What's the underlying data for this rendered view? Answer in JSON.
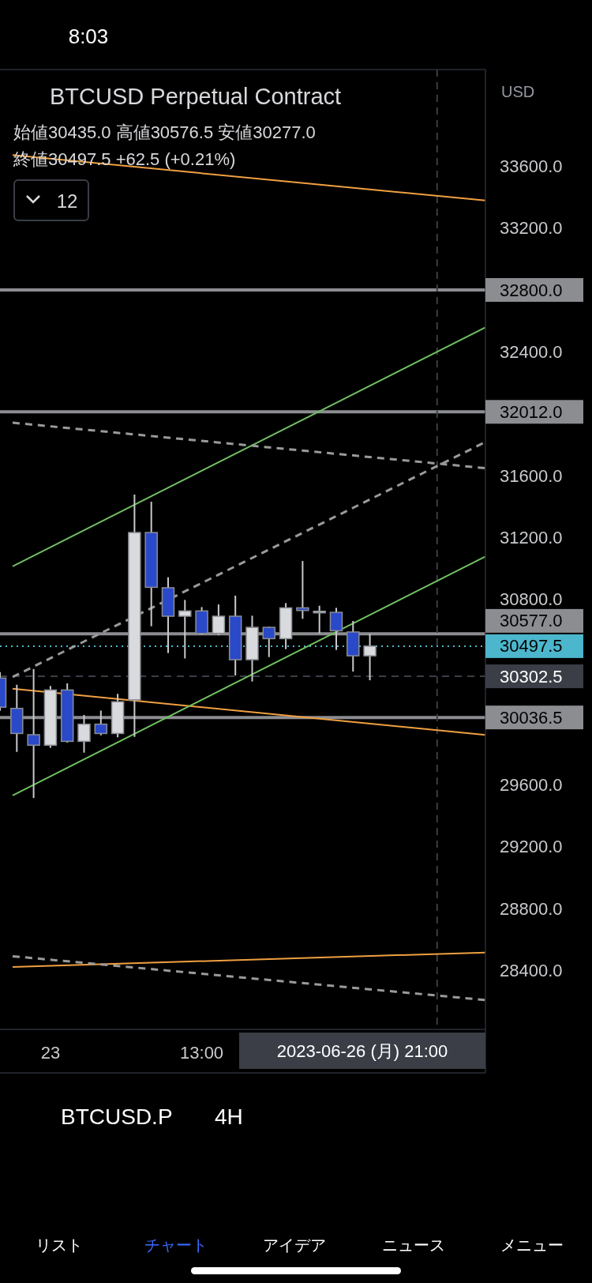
{
  "chart_data": {
    "type": "candlestick",
    "title": "BTCUSD Perpetual Contract",
    "subtitle": "始値30435.0  高値30576.5  安値30277.0\n終値30497.5  +62.5 (+0.21%)",
    "x": [
      "2023-06-22T13:00",
      "2023-06-22T17:00",
      "2023-06-22T21:00",
      "2023-06-23T01:00",
      "2023-06-23T05:00",
      "2023-06-23T09:00",
      "2023-06-23T13:00",
      "2023-06-23T17:00",
      "2023-06-23T21:00",
      "2023-06-24T01:00",
      "2023-06-24T05:00",
      "2023-06-24T09:00",
      "2023-06-24T13:00",
      "2023-06-24T17:00",
      "2023-06-24T21:00",
      "2023-06-25T01:00",
      "2023-06-25T05:00",
      "2023-06-25T09:00",
      "2023-06-25T13:00",
      "2023-06-25T17:00",
      "2023-06-25T21:00",
      "2023-06-26T01:00",
      "2023-06-26T05:00"
    ],
    "ohlc": [
      [
        30291,
        30330,
        30080,
        30103
      ],
      [
        30095,
        30248,
        29814,
        29933
      ],
      [
        29925,
        30350,
        29516,
        29857
      ],
      [
        29857,
        30240,
        29840,
        30214
      ],
      [
        30214,
        30257,
        29874,
        29882
      ],
      [
        29882,
        30053,
        29809,
        29993
      ],
      [
        29993,
        30081,
        29921,
        29933
      ],
      [
        29933,
        30189,
        29908,
        30138
      ],
      [
        30150,
        31477,
        29911,
        31232
      ],
      [
        31232,
        31431,
        30626,
        30878
      ],
      [
        30875,
        30943,
        30453,
        30691
      ],
      [
        30691,
        30796,
        30418,
        30725
      ],
      [
        30725,
        30750,
        30572,
        30580
      ],
      [
        30580,
        30767,
        30568,
        30691
      ],
      [
        30691,
        30824,
        30308,
        30410
      ],
      [
        30410,
        30694,
        30269,
        30619
      ],
      [
        30619,
        30623,
        30427,
        30546
      ],
      [
        30546,
        30776,
        30478,
        30745
      ],
      [
        30745,
        31048,
        30674,
        30728
      ],
      [
        30719,
        30759,
        30580,
        30723
      ],
      [
        30716,
        30745,
        30473,
        30597
      ],
      [
        30589,
        30660,
        30333,
        30435
      ],
      [
        30435.0,
        30576.5,
        30277.0,
        30497.5
      ]
    ],
    "colors": [
      "#2a49c8",
      "#2a49c8",
      "#2a49c8",
      "#d9dadd",
      "#2a49c8",
      "#d9dadd",
      "#2a49c8",
      "#d9dadd",
      "#d9dadd",
      "#2a49c8",
      "#2a49c8",
      "#d9dadd",
      "#2a49c8",
      "#d9dadd",
      "#2a49c8",
      "#d9dadd",
      "#2a49c8",
      "#d9dadd",
      "#2a49c8",
      "#d9dadd",
      "#2a49c8",
      "#2a49c8",
      "#d9dadd"
    ],
    "series": [
      {
        "type": "line",
        "x": [
          "2023-06-22T16:00",
          "2023-06-27T08:30"
        ],
        "values": [
          33672,
          33378
        ],
        "color": "#f0a040",
        "line_style": "solid"
      },
      {
        "type": "line",
        "x": [
          "2023-06-22T16:00",
          "2023-06-27T08:30"
        ],
        "values": [
          30222,
          29924
        ],
        "color": "#f0a040",
        "line_style": "solid"
      },
      {
        "type": "line",
        "x": [
          "2023-06-22T16:00",
          "2023-06-27T08:30"
        ],
        "values": [
          28424,
          28517
        ],
        "color": "#f0a040",
        "line_style": "solid"
      },
      {
        "type": "line",
        "x": [
          "2023-06-22T16:00",
          "2023-06-27T08:30"
        ],
        "values": [
          31013,
          32558
        ],
        "color": "#6fbf60",
        "line_style": "solid"
      },
      {
        "type": "line",
        "x": [
          "2023-06-22T16:00",
          "2023-06-27T08:30"
        ],
        "values": [
          29532,
          31077
        ],
        "color": "#6fbf60",
        "line_style": "solid"
      },
      {
        "type": "line",
        "x": [
          "2023-06-22T16:00",
          "2023-06-27T08:30"
        ],
        "values": [
          30298,
          31817
        ],
        "color": "#9a9a9a",
        "line_style": "dashed"
      },
      {
        "type": "line",
        "x": [
          "2023-06-22T16:00",
          "2023-06-27T08:30"
        ],
        "values": [
          31942,
          31648
        ],
        "color": "#9a9a9a",
        "line_style": "dashed"
      },
      {
        "type": "line",
        "x": [
          "2023-06-22T16:00",
          "2023-06-27T08:30"
        ],
        "values": [
          28493,
          28210
        ],
        "color": "#9a9a9a",
        "line_style": "dashed"
      }
    ],
    "xlim": [
      "2023-06-22T13:00",
      "2023-06-27T08:30"
    ],
    "ylim": [
      28020,
      34225
    ],
    "xticks": [
      {
        "value": "2023-06-23T01:00",
        "label": "23"
      },
      {
        "value": "2023-06-24T13:00",
        "label": "13:00"
      }
    ],
    "yticks": [
      {
        "value": 28400,
        "label": "28400.0"
      },
      {
        "value": 28800,
        "label": "28800.0"
      },
      {
        "value": 29200,
        "label": "29200.0"
      },
      {
        "value": 29600,
        "label": "29600.0"
      },
      {
        "value": 30800,
        "label": "30800.0"
      },
      {
        "value": 31200,
        "label": "31200.0"
      },
      {
        "value": 31600,
        "label": "31600.0"
      },
      {
        "value": 32400,
        "label": "32400.0"
      },
      {
        "value": 33200,
        "label": "33200.0"
      },
      {
        "value": 33600,
        "label": "33600.0"
      }
    ],
    "ref_lines": [
      {
        "axis": "y",
        "value": 32800,
        "label": "32800.0",
        "color": "#8c8d91",
        "line_style": "solid"
      },
      {
        "axis": "y",
        "value": 32012,
        "label": "32012.0",
        "color": "#8c8d91",
        "line_style": "solid"
      },
      {
        "axis": "y",
        "value": 30577,
        "label": "30577.0",
        "color": "#8c8d91",
        "line_style": "solid"
      },
      {
        "axis": "y",
        "value": 30036.5,
        "label": "30036.5",
        "color": "#8c8d91",
        "line_style": "solid"
      },
      {
        "axis": "y",
        "value": 30497.5,
        "label": "30497.5",
        "color": "#4cb6cc",
        "line_style": "dotted"
      },
      {
        "axis": "y",
        "value": 30302.5,
        "label": "30302.5",
        "color": "#3b3e46",
        "line_style": "dashed"
      },
      {
        "axis": "x",
        "value": "2023-06-26T21:00",
        "label": "2023-06-26 (月)   21:00",
        "color": "#3b3e46",
        "line_style": "dashed"
      }
    ],
    "annotations": [
      "8:03",
      "12",
      "USD",
      "BTCUSD.P",
      "4H",
      "リスト",
      "チャート",
      "アイデア",
      "ニュース",
      "メニュー"
    ]
  }
}
